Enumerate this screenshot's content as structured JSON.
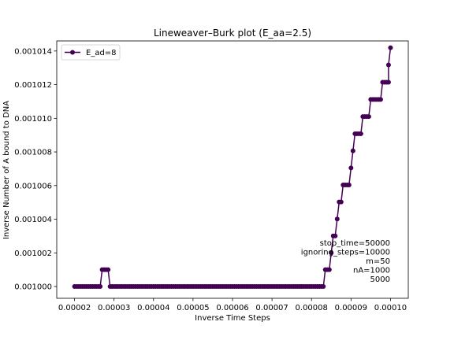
{
  "chart_data": {
    "type": "line",
    "title": "Lineweaver–Burk plot (E_aa=2.5)",
    "xlabel": "Inverse Time Steps",
    "ylabel": "Inverse Number of A bound to DNA",
    "xlim": [
      1.55e-05,
      0.0001045
    ],
    "ylim": [
      0.0009993,
      0.0010146
    ],
    "xticks": [
      2e-05,
      3e-05,
      4e-05,
      5e-05,
      6e-05,
      7e-05,
      8e-05,
      9e-05,
      0.0001
    ],
    "xtick_labels": [
      "0.00002",
      "0.00003",
      "0.00004",
      "0.00005",
      "0.00006",
      "0.00007",
      "0.00008",
      "0.00009",
      "0.00010"
    ],
    "yticks": [
      0.001,
      0.001002,
      0.001004,
      0.001006,
      0.001008,
      0.00101,
      0.001012,
      0.001014
    ],
    "ytick_labels": [
      "0.001000",
      "0.001002",
      "0.001004",
      "0.001006",
      "0.001008",
      "0.001010",
      "0.001012",
      "0.001014"
    ],
    "grid": false,
    "legend_position": "top-left",
    "series": [
      {
        "name": "E_ad=8",
        "color": "#440154",
        "marker": "circle",
        "x_start": 2e-05,
        "x_step": 5e-07,
        "y_steps": [
          {
            "from_x": 2e-05,
            "to_x": 2.65e-05,
            "y": 0.001
          },
          {
            "from_x": 2.7e-05,
            "to_x": 2.85e-05,
            "y": 0.001001001
          },
          {
            "from_x": 2.9e-05,
            "to_x": 8.3e-05,
            "y": 0.001
          },
          {
            "from_x": 8.35e-05,
            "to_x": 8.45e-05,
            "y": 0.001001001
          },
          {
            "from_x": 8.5e-05,
            "to_x": 8.5e-05,
            "y": 0.001002004
          },
          {
            "from_x": 8.55e-05,
            "to_x": 8.6e-05,
            "y": 0.001003009
          },
          {
            "from_x": 8.65e-05,
            "to_x": 8.65e-05,
            "y": 0.0010040161
          },
          {
            "from_x": 8.7e-05,
            "to_x": 8.75e-05,
            "y": 0.0010050251
          },
          {
            "from_x": 8.8e-05,
            "to_x": 8.95e-05,
            "y": 0.0010060362
          },
          {
            "from_x": 9e-05,
            "to_x": 9e-05,
            "y": 0.0010070493
          },
          {
            "from_x": 9.05e-05,
            "to_x": 9.05e-05,
            "y": 0.0010080645
          },
          {
            "from_x": 9.1e-05,
            "to_x": 9.25e-05,
            "y": 0.0010090817
          },
          {
            "from_x": 9.3e-05,
            "to_x": 9.45e-05,
            "y": 0.001010101
          },
          {
            "from_x": 9.5e-05,
            "to_x": 9.75e-05,
            "y": 0.0010111223
          },
          {
            "from_x": 9.8e-05,
            "to_x": 9.95e-05,
            "y": 0.0010121457
          },
          {
            "from_x": 9.95e-05,
            "to_x": 9.95e-05,
            "y": 0.0010131712
          },
          {
            "from_x": 0.0001,
            "to_x": 0.0001,
            "y": 0.0010141988
          }
        ]
      }
    ],
    "annotations": [
      "stop_time=50000",
      "ignoring_steps=10000",
      "m=50",
      "nA=1000",
      "5000"
    ]
  }
}
